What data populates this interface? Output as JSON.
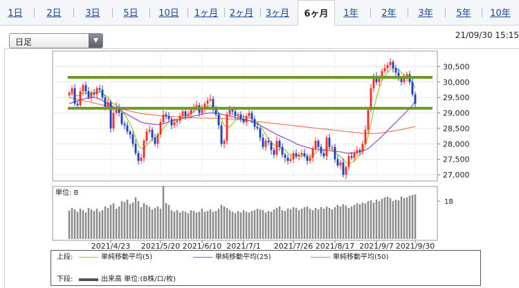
{
  "tabs": [
    {
      "label": "1日",
      "active": false
    },
    {
      "label": "2日",
      "active": false
    },
    {
      "label": "3日",
      "active": false
    },
    {
      "label": "5日",
      "active": false
    },
    {
      "label": "10日",
      "active": false
    },
    {
      "label": "1ヶ月",
      "active": false
    },
    {
      "label": "2ヶ月",
      "active": false
    },
    {
      "label": "3ヶ月",
      "active": false
    },
    {
      "label": "6ヶ月",
      "active": true
    },
    {
      "label": "1年",
      "active": false
    },
    {
      "label": "2年",
      "active": false
    },
    {
      "label": "3年",
      "active": false
    },
    {
      "label": "5年",
      "active": false
    },
    {
      "label": "10年",
      "active": false
    }
  ],
  "period_select": {
    "value": "日足"
  },
  "timestamp": "21/09/30 15:15",
  "colors": {
    "bull": "#ff2a2a",
    "bear": "#1c3fc4",
    "ma5": "#9acd32",
    "ma25": "#9955cc",
    "ma50": "#f08060",
    "hline": "#6a9a24",
    "volume": "#8a8a8a"
  },
  "chart_data": {
    "type": "candlestick",
    "price_axis": {
      "ylim": [
        26800,
        31000
      ],
      "ticks": [
        "30,500",
        "30,000",
        "29,500",
        "29,000",
        "28,500",
        "28,000",
        "27,500",
        "27,000"
      ],
      "tick_values": [
        30500,
        30000,
        29500,
        29000,
        28500,
        28000,
        27500,
        27000
      ]
    },
    "x_tick_labels": [
      "2021/4/23",
      "2021/5/20",
      "2021/6/10",
      "2021/7/1",
      "2021/7/26",
      "2021/8/17",
      "2021/9/7",
      "2021/9/30"
    ],
    "horizontal_lines": [
      30150,
      29150
    ],
    "close": [
      29650,
      29800,
      29300,
      29250,
      29700,
      29900,
      29700,
      29500,
      29650,
      29600,
      29800,
      29750,
      29500,
      29200,
      29350,
      28500,
      29000,
      29200,
      29000,
      28650,
      28600,
      28400,
      28300,
      28000,
      27700,
      27450,
      27550,
      28100,
      28400,
      28450,
      28200,
      28000,
      28300,
      28700,
      28950,
      28900,
      28800,
      28600,
      28700,
      28750,
      28900,
      29050,
      28900,
      28950,
      29100,
      29200,
      29250,
      29000,
      29150,
      29300,
      29400,
      29450,
      29100,
      28950,
      28600,
      28000,
      28100,
      28950,
      29100,
      29050,
      28900,
      28950,
      28800,
      28700,
      28900,
      29000,
      28800,
      28550,
      28500,
      28200,
      27900,
      28100,
      28050,
      27800,
      27650,
      28100,
      27900,
      27650,
      27550,
      27450,
      27500,
      27700,
      27600,
      27650,
      27700,
      27600,
      27450,
      27550,
      27850,
      28100,
      27900,
      27700,
      27600,
      28200,
      27900,
      27900,
      27500,
      27300,
      27400,
      27000,
      27250,
      27600,
      27550,
      27700,
      27800,
      27750,
      28000,
      28450,
      29100,
      29800,
      30200,
      30000,
      30150,
      30350,
      30450,
      30550,
      30650,
      30450,
      30300,
      30100,
      30000,
      30150,
      30250,
      30000,
      29600,
      29300
    ],
    "ma5": [
      29600,
      29650,
      29600,
      29550,
      29600,
      29650,
      29650,
      29630,
      29650,
      29650,
      29680,
      29700,
      29650,
      29560,
      29520,
      29350,
      29300,
      29250,
      29150,
      29050,
      28950,
      28800,
      28650,
      28450,
      28200,
      27950,
      27850,
      27850,
      27950,
      28050,
      28150,
      28200,
      28250,
      28350,
      28500,
      28600,
      28700,
      28750,
      28800,
      28800,
      28800,
      28850,
      28900,
      28950,
      29000,
      29050,
      29100,
      29100,
      29130,
      29180,
      29220,
      29250,
      29200,
      29150,
      29000,
      28800,
      28600,
      28550,
      28550,
      28650,
      28750,
      28850,
      28900,
      28880,
      28870,
      28850,
      28820,
      28770,
      28700,
      28600,
      28450,
      28300,
      28150,
      28050,
      27950,
      27950,
      27900,
      27850,
      27800,
      27700,
      27650,
      27620,
      27600,
      27600,
      27620,
      27630,
      27600,
      27580,
      27630,
      27700,
      27780,
      27830,
      27800,
      27850,
      27850,
      27850,
      27750,
      27650,
      27600,
      27500,
      27400,
      27350,
      27400,
      27450,
      27550,
      27650,
      27750,
      27950,
      28250,
      28650,
      29100,
      29500,
      29800,
      30050,
      30200,
      30300,
      30400,
      30450,
      30450,
      30400,
      30300,
      30200,
      30150,
      30100,
      30000,
      29800
    ],
    "ma25": [
      29300,
      29330,
      29360,
      29390,
      29420,
      29450,
      29470,
      29480,
      29490,
      29500,
      29480,
      29450,
      29400,
      29350,
      29300,
      29250,
      29200,
      29150,
      29100,
      29050,
      29000,
      28950,
      28900,
      28850,
      28800,
      28750,
      28700,
      28680,
      28660,
      28650,
      28640,
      28630,
      28620,
      28630,
      28650,
      28680,
      28710,
      28740,
      28760,
      28780,
      28800,
      28820,
      28840,
      28860,
      28880,
      28900,
      28920,
      28940,
      28960,
      28980,
      28990,
      29000,
      29000,
      28990,
      28980,
      28960,
      28940,
      28920,
      28900,
      28880,
      28860,
      28840,
      28820,
      28800,
      28780,
      28750,
      28720,
      28680,
      28640,
      28600,
      28550,
      28500,
      28450,
      28400,
      28350,
      28300,
      28260,
      28220,
      28180,
      28140,
      28100,
      28050,
      28000,
      27970,
      27940,
      27910,
      27880,
      27860,
      27840,
      27830,
      27820,
      27810,
      27800,
      27790,
      27780,
      27770,
      27760,
      27750,
      27740,
      27720,
      27700,
      27700,
      27700,
      27710,
      27720,
      27740,
      27760,
      27800,
      27850,
      27920,
      28000,
      28080,
      28160,
      28250,
      28340,
      28430,
      28520,
      28610,
      28700,
      28790,
      28880,
      28970,
      29060,
      29150,
      29250,
      29380
    ],
    "ma50": [
      29500,
      29480,
      29460,
      29440,
      29420,
      29400,
      29380,
      29360,
      29340,
      29320,
      29300,
      29280,
      29260,
      29240,
      29220,
      29200,
      29180,
      29160,
      29140,
      29120,
      29100,
      29080,
      29060,
      29040,
      29020,
      29000,
      28980,
      28970,
      28960,
      28950,
      28940,
      28930,
      28920,
      28910,
      28900,
      28895,
      28890,
      28885,
      28880,
      28875,
      28870,
      28865,
      28860,
      28855,
      28850,
      28845,
      28840,
      28838,
      28836,
      28834,
      28832,
      28830,
      28828,
      28826,
      28824,
      28820,
      28815,
      28810,
      28805,
      28800,
      28795,
      28790,
      28780,
      28770,
      28760,
      28750,
      28740,
      28730,
      28720,
      28710,
      28700,
      28690,
      28680,
      28670,
      28660,
      28650,
      28640,
      28630,
      28620,
      28610,
      28600,
      28590,
      28580,
      28570,
      28560,
      28550,
      28540,
      28530,
      28520,
      28510,
      28500,
      28490,
      28480,
      28470,
      28460,
      28450,
      28440,
      28430,
      28420,
      28410,
      28400,
      28390,
      28380,
      28370,
      28360,
      28350,
      28340,
      28335,
      28330,
      28330,
      28335,
      28340,
      28350,
      28360,
      28370,
      28385,
      28400,
      28415,
      28430,
      28445,
      28460,
      28480,
      28500,
      28520,
      28540,
      28560
    ],
    "volume_axis": {
      "label": "単位: B",
      "tick": "1B",
      "ymax": 1.35
    },
    "volume": [
      0.75,
      0.82,
      0.78,
      0.72,
      0.8,
      0.76,
      0.7,
      0.82,
      0.78,
      0.74,
      0.8,
      0.72,
      0.76,
      0.86,
      0.82,
      0.9,
      0.94,
      0.8,
      0.86,
      1.0,
      0.98,
      1.04,
      0.92,
      0.96,
      1.1,
      1.0,
      0.84,
      0.95,
      0.9,
      0.85,
      0.78,
      0.82,
      0.86,
      0.8,
      1.4,
      0.95,
      0.9,
      0.76,
      0.72,
      0.76,
      0.7,
      0.74,
      0.72,
      0.68,
      0.76,
      0.74,
      0.7,
      0.72,
      0.8,
      0.72,
      0.74,
      0.78,
      0.72,
      0.74,
      0.8,
      0.9,
      0.86,
      0.82,
      0.76,
      0.72,
      0.68,
      0.74,
      0.7,
      0.76,
      0.72,
      0.7,
      0.74,
      0.76,
      0.8,
      0.78,
      0.76,
      0.7,
      0.74,
      0.72,
      0.78,
      0.82,
      0.86,
      0.76,
      0.74,
      0.8,
      0.78,
      0.84,
      0.82,
      0.76,
      0.8,
      0.84,
      0.86,
      0.8,
      0.76,
      0.82,
      0.78,
      0.84,
      0.8,
      0.86,
      0.82,
      0.78,
      0.84,
      0.9,
      0.86,
      0.92,
      0.88,
      0.82,
      0.86,
      0.9,
      0.94,
      0.92,
      0.96,
      0.94,
      1.0,
      1.02,
      0.96,
      1.04,
      1.0,
      1.06,
      1.1,
      1.12,
      1.08,
      1.0,
      1.04,
      1.02,
      1.12,
      1.08,
      1.1,
      1.14,
      1.16,
      1.18
    ],
    "legend": {
      "upper_label": "上段:",
      "lower_label": "下段:",
      "items": [
        "単純移動平均(5)",
        "単純移動平均(25)",
        "単純移動平均(50)"
      ],
      "volume_item": "出来高 単位:(B株/ロ/枚)"
    }
  }
}
